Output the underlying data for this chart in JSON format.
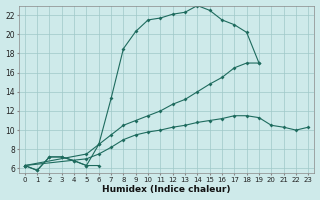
{
  "xlabel": "Humidex (Indice chaleur)",
  "bg_color": "#ceeaea",
  "grid_color": "#b8d8d8",
  "line_color": "#1e6b5e",
  "x_min": -0.5,
  "x_max": 23.5,
  "y_min": 5.5,
  "y_max": 23.0,
  "yticks": [
    6,
    8,
    10,
    12,
    14,
    16,
    18,
    20,
    22
  ],
  "xticks": [
    0,
    1,
    2,
    3,
    4,
    5,
    6,
    7,
    8,
    9,
    10,
    11,
    12,
    13,
    14,
    15,
    16,
    17,
    18,
    19,
    20,
    21,
    22,
    23
  ],
  "line1_x": [
    0,
    1,
    2,
    3,
    4,
    5,
    6,
    7,
    8,
    9,
    10,
    11,
    12,
    13,
    14,
    15,
    16,
    17,
    18,
    19
  ],
  "line1_y": [
    6.3,
    5.8,
    7.2,
    7.2,
    6.8,
    6.3,
    8.5,
    13.3,
    18.5,
    20.3,
    21.5,
    21.7,
    22.1,
    22.3,
    23.0,
    22.5,
    21.5,
    21.0,
    20.2,
    17.0
  ],
  "line2_x": [
    0,
    1,
    2,
    3,
    4,
    5,
    6
  ],
  "line2_y": [
    6.3,
    5.8,
    7.2,
    7.2,
    6.8,
    6.3,
    6.3
  ],
  "line3_x": [
    0,
    5,
    6,
    7,
    8,
    9,
    10,
    11,
    12,
    13,
    14,
    15,
    16,
    17,
    18,
    19
  ],
  "line3_y": [
    6.3,
    7.5,
    8.5,
    9.5,
    10.5,
    11.0,
    11.5,
    12.0,
    12.7,
    13.2,
    14.0,
    14.8,
    15.5,
    16.5,
    17.0,
    17.0
  ],
  "line4_x": [
    0,
    5,
    6,
    7,
    8,
    9,
    10,
    11,
    12,
    13,
    14,
    15,
    16,
    17,
    18,
    19,
    20,
    21,
    22,
    23
  ],
  "line4_y": [
    6.3,
    7.0,
    7.5,
    8.2,
    9.0,
    9.5,
    9.8,
    10.0,
    10.3,
    10.5,
    10.8,
    11.0,
    11.2,
    11.5,
    11.5,
    11.3,
    10.5,
    10.3,
    10.0,
    10.3
  ]
}
